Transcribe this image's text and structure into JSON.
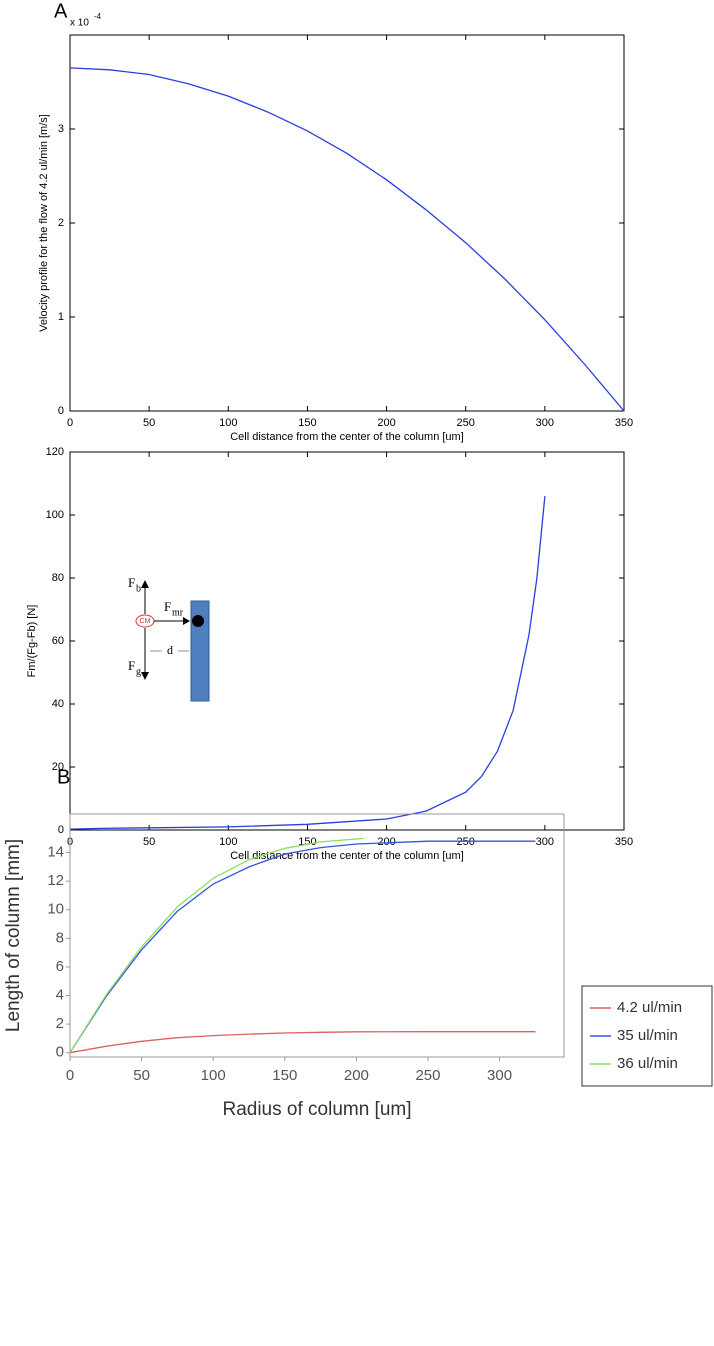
{
  "chart_data": [
    {
      "type": "line",
      "panel_label": "A",
      "y_multiplier": "x 10",
      "y_multiplier_exp": "-4",
      "xlabel": "Cell distance from the center of the column [um]",
      "ylabel": "Velocity profile for the flow of 4.2 ul/min [m/s]",
      "x": [
        0,
        25,
        50,
        75,
        100,
        125,
        150,
        175,
        200,
        225,
        250,
        275,
        300,
        325,
        350
      ],
      "values": [
        3.65,
        3.63,
        3.58,
        3.48,
        3.35,
        3.18,
        2.98,
        2.74,
        2.46,
        2.14,
        1.79,
        1.4,
        0.97,
        0.5,
        0
      ],
      "color": "#2a3fe0",
      "xlim": [
        0,
        350
      ],
      "xticks": [
        0,
        50,
        100,
        150,
        200,
        250,
        300,
        350
      ],
      "ylim": [
        0,
        4
      ],
      "yticks": [
        0,
        1,
        2,
        3
      ]
    },
    {
      "type": "line",
      "panel_label": "B",
      "xlabel": "Cell distance from the center of the column [um]",
      "ylabel": "Fm/(Fg-Fb) [N]",
      "x": [
        0,
        20,
        50,
        100,
        150,
        200,
        225,
        250,
        260,
        270,
        280,
        290,
        295,
        300
      ],
      "values": [
        0.3,
        0.5,
        0.7,
        1,
        1.8,
        3.5,
        6,
        12,
        17,
        25,
        38,
        62,
        80,
        106
      ],
      "color": "#2a3fe0",
      "xlim": [
        0,
        350
      ],
      "xticks": [
        0,
        50,
        100,
        150,
        200,
        250,
        300,
        350
      ],
      "ylim": [
        0,
        120
      ],
      "yticks": [
        0,
        20,
        40,
        60,
        80,
        100,
        120
      ],
      "inset": {
        "forces": [
          [
            "F",
            "b"
          ],
          [
            "F",
            "mr"
          ],
          [
            "F",
            "g"
          ]
        ],
        "cm": "CM",
        "d": "d"
      }
    },
    {
      "type": "line",
      "xlabel": "Radius of column [um]",
      "ylabel": "Length of column [mm]",
      "series": [
        {
          "name": "4.2 ul/min",
          "color": "#e06060",
          "x": [
            0,
            25,
            50,
            75,
            100,
            125,
            150,
            175,
            200,
            250,
            325
          ],
          "values": [
            0,
            0.45,
            0.8,
            1.05,
            1.2,
            1.3,
            1.38,
            1.43,
            1.46,
            1.47,
            1.47
          ]
        },
        {
          "name": "35 ul/min",
          "color": "#3355dd",
          "x": [
            0,
            25,
            50,
            75,
            100,
            125,
            150,
            175,
            200,
            250,
            325
          ],
          "values": [
            0,
            3.9,
            7.2,
            9.9,
            11.8,
            13,
            13.9,
            14.35,
            14.6,
            14.8,
            14.8
          ]
        },
        {
          "name": "36 ul/min",
          "color": "#88e060",
          "x": [
            0,
            25,
            50,
            75,
            100,
            125,
            150,
            175,
            200,
            205
          ],
          "values": [
            0,
            4,
            7.4,
            10.2,
            12.2,
            13.5,
            14.3,
            14.75,
            14.95,
            15
          ]
        }
      ],
      "xlim": [
        0,
        345
      ],
      "xticks": [
        0,
        50,
        100,
        150,
        200,
        250,
        300
      ],
      "ylim": [
        -0.3,
        16.7
      ],
      "yticks": [
        0,
        2,
        4,
        6,
        8,
        10,
        12,
        14
      ],
      "legend": "right"
    }
  ]
}
